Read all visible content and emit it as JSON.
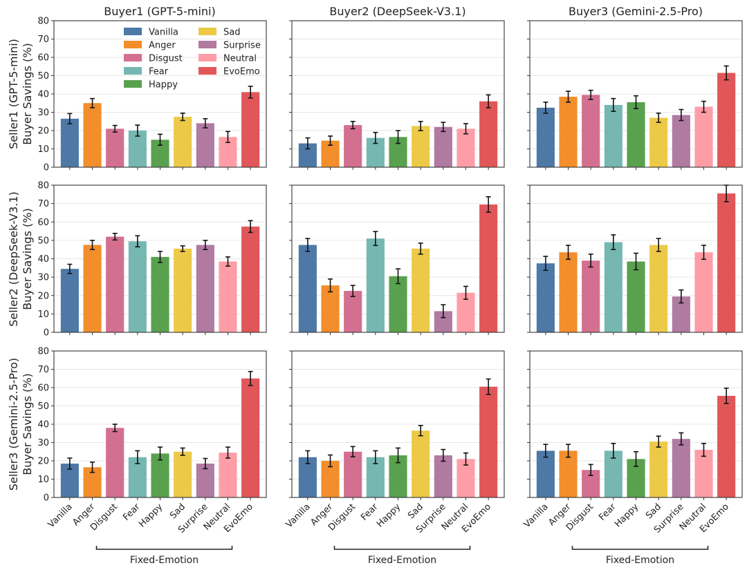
{
  "chart_data": {
    "type": "bar",
    "layout": "3x3 grid",
    "categories": [
      "Vanilla",
      "Anger",
      "Disgust",
      "Fear",
      "Happy",
      "Sad",
      "Surprise",
      "Neutral",
      "EvoEmo"
    ],
    "colors": {
      "Vanilla": "#4e79a7",
      "Anger": "#f28e2b",
      "Disgust": "#d4708f",
      "Fear": "#76b7b2",
      "Happy": "#59a14f",
      "Sad": "#edc948",
      "Surprise": "#b07aa1",
      "Neutral": "#ff9da7",
      "EvoEmo": "#e15759"
    },
    "legend": {
      "placement": "top-left panel, upper area",
      "entries": [
        "Vanilla",
        "Anger",
        "Disgust",
        "Fear",
        "Happy",
        "Sad",
        "Surprise",
        "Neutral",
        "EvoEmo"
      ]
    },
    "column_titles": [
      "Buyer1 (GPT-5-mini)",
      "Buyer2 (DeepSeek-V3.1)",
      "Buyer3 (Gemini-2.5-Pro)"
    ],
    "row_labels": [
      [
        "Seller1 (GPT-5-mini)",
        "Buyer Savings (%)"
      ],
      [
        "Seller2 (DeepSeek-V3.1)",
        "Buyer Savings (%)"
      ],
      [
        "Seller3 (Gemini-2.5-Pro)",
        "Buyer Savings (%)"
      ]
    ],
    "ylim": [
      0,
      80
    ],
    "yticks": [
      0,
      10,
      20,
      30,
      40,
      50,
      60,
      70,
      80
    ],
    "grid": "horizontal",
    "bracket_label": "Fixed-Emotion",
    "panels": [
      [
        {
          "values": [
            26.5,
            35,
            21,
            20,
            15,
            27.5,
            24,
            16.5,
            41
          ],
          "errors": [
            2.8,
            2.5,
            1.8,
            3,
            3,
            2,
            2.5,
            3,
            3.2
          ]
        },
        {
          "values": [
            13,
            14.5,
            23,
            16,
            16.5,
            22.5,
            22,
            21,
            36
          ],
          "errors": [
            3,
            2.5,
            2,
            3,
            3.5,
            2.5,
            2.5,
            2.8,
            3.5
          ]
        },
        {
          "values": [
            32.5,
            38.5,
            39.5,
            34,
            35.5,
            27,
            28.5,
            33,
            51.5
          ],
          "errors": [
            3,
            3,
            2.5,
            3.5,
            3.5,
            2.5,
            3,
            3,
            3.8
          ]
        }
      ],
      [
        {
          "values": [
            34.5,
            47.5,
            52,
            49.5,
            41,
            45.5,
            47.5,
            38.5,
            57.5
          ],
          "errors": [
            2.5,
            2.5,
            1.8,
            3,
            3,
            1.5,
            2.5,
            2.5,
            3.2
          ]
        },
        {
          "values": [
            47.5,
            25.5,
            22.5,
            51,
            30.5,
            45.5,
            11.5,
            21.5,
            69.5
          ],
          "errors": [
            3.5,
            3.5,
            3,
            3.8,
            4,
            3,
            3.5,
            3.5,
            4.2
          ]
        },
        {
          "values": [
            37.5,
            43.5,
            39,
            49,
            38.5,
            47.5,
            19.5,
            43.5,
            75.5
          ],
          "errors": [
            3.8,
            3.8,
            3.5,
            4,
            4.5,
            3.5,
            3.5,
            3.8,
            4.5
          ]
        }
      ],
      [
        {
          "values": [
            18.5,
            16.5,
            38,
            22,
            24,
            25,
            18.5,
            24.5,
            65
          ],
          "errors": [
            3,
            2.8,
            2,
            3.5,
            3.5,
            2,
            2.8,
            3,
            3.8
          ]
        },
        {
          "values": [
            22,
            20,
            25,
            22,
            23,
            36.5,
            23,
            21,
            60.5
          ],
          "errors": [
            3.5,
            3.2,
            2.8,
            3.5,
            4,
            2.8,
            3.2,
            3.3,
            4.2
          ]
        },
        {
          "values": [
            25.5,
            25.5,
            15,
            25.5,
            21,
            30.5,
            32,
            26,
            55.5
          ],
          "errors": [
            3.5,
            3.5,
            3,
            4,
            4,
            3,
            3.3,
            3.5,
            4.2
          ]
        }
      ]
    ]
  }
}
